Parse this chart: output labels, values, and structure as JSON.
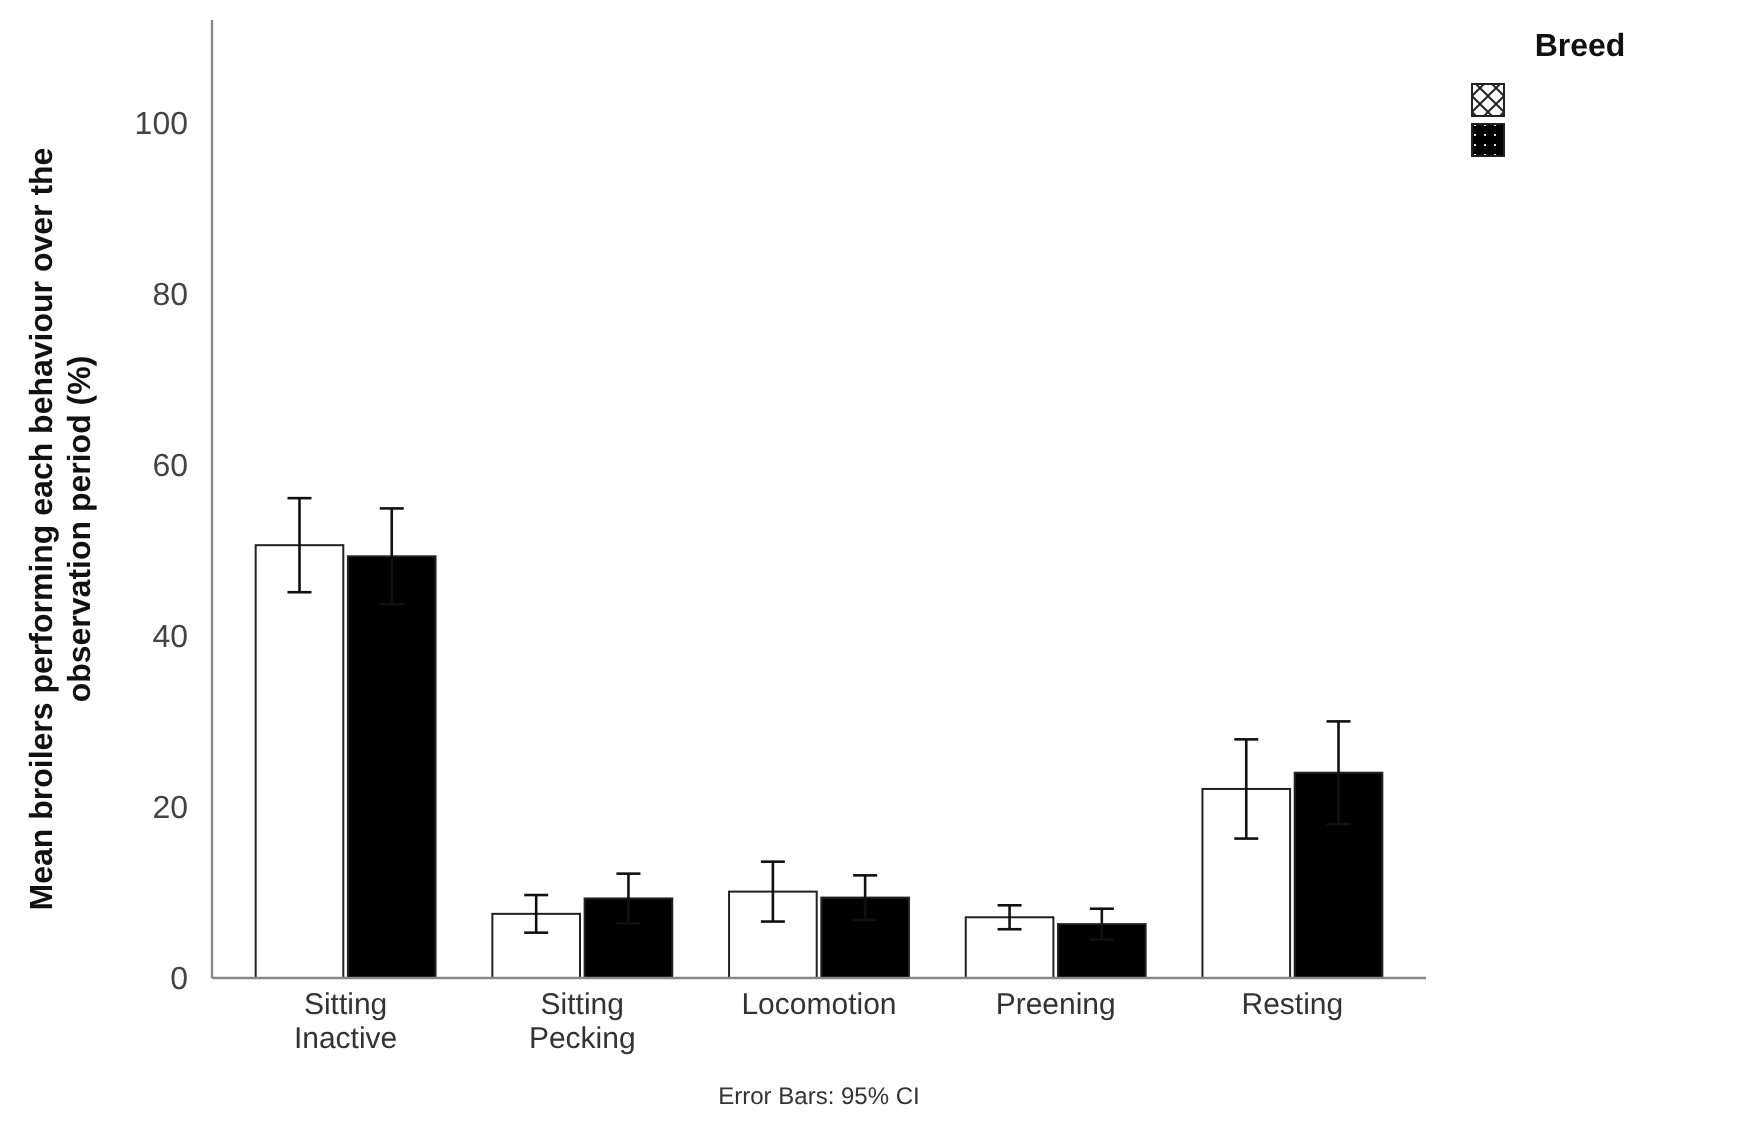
{
  "chart_data": {
    "type": "bar",
    "ylabel": "Mean broilers performing each behaviour over the observation period (%)",
    "legend_title": "Breed",
    "annotations": [
      "Error Bars: 95% CI"
    ],
    "categories": [
      "Sitting Inactive",
      "Sitting Pecking",
      "Locomotion",
      "Preening",
      "Resting"
    ],
    "series": [
      {
        "color": "#ffffff",
        "values": [
          50.6,
          7.5,
          10.1,
          7.1,
          22.1
        ],
        "errors": [
          5.5,
          2.2,
          3.5,
          1.4,
          5.8
        ]
      },
      {
        "color": "#000000",
        "values": [
          49.3,
          9.3,
          9.4,
          6.3,
          24.0
        ],
        "errors": [
          5.6,
          2.9,
          2.6,
          1.8,
          6.0
        ]
      }
    ],
    "ylim": [
      0,
      112
    ],
    "yticks": [
      0,
      20,
      40,
      60,
      80,
      100
    ],
    "grid": false
  }
}
